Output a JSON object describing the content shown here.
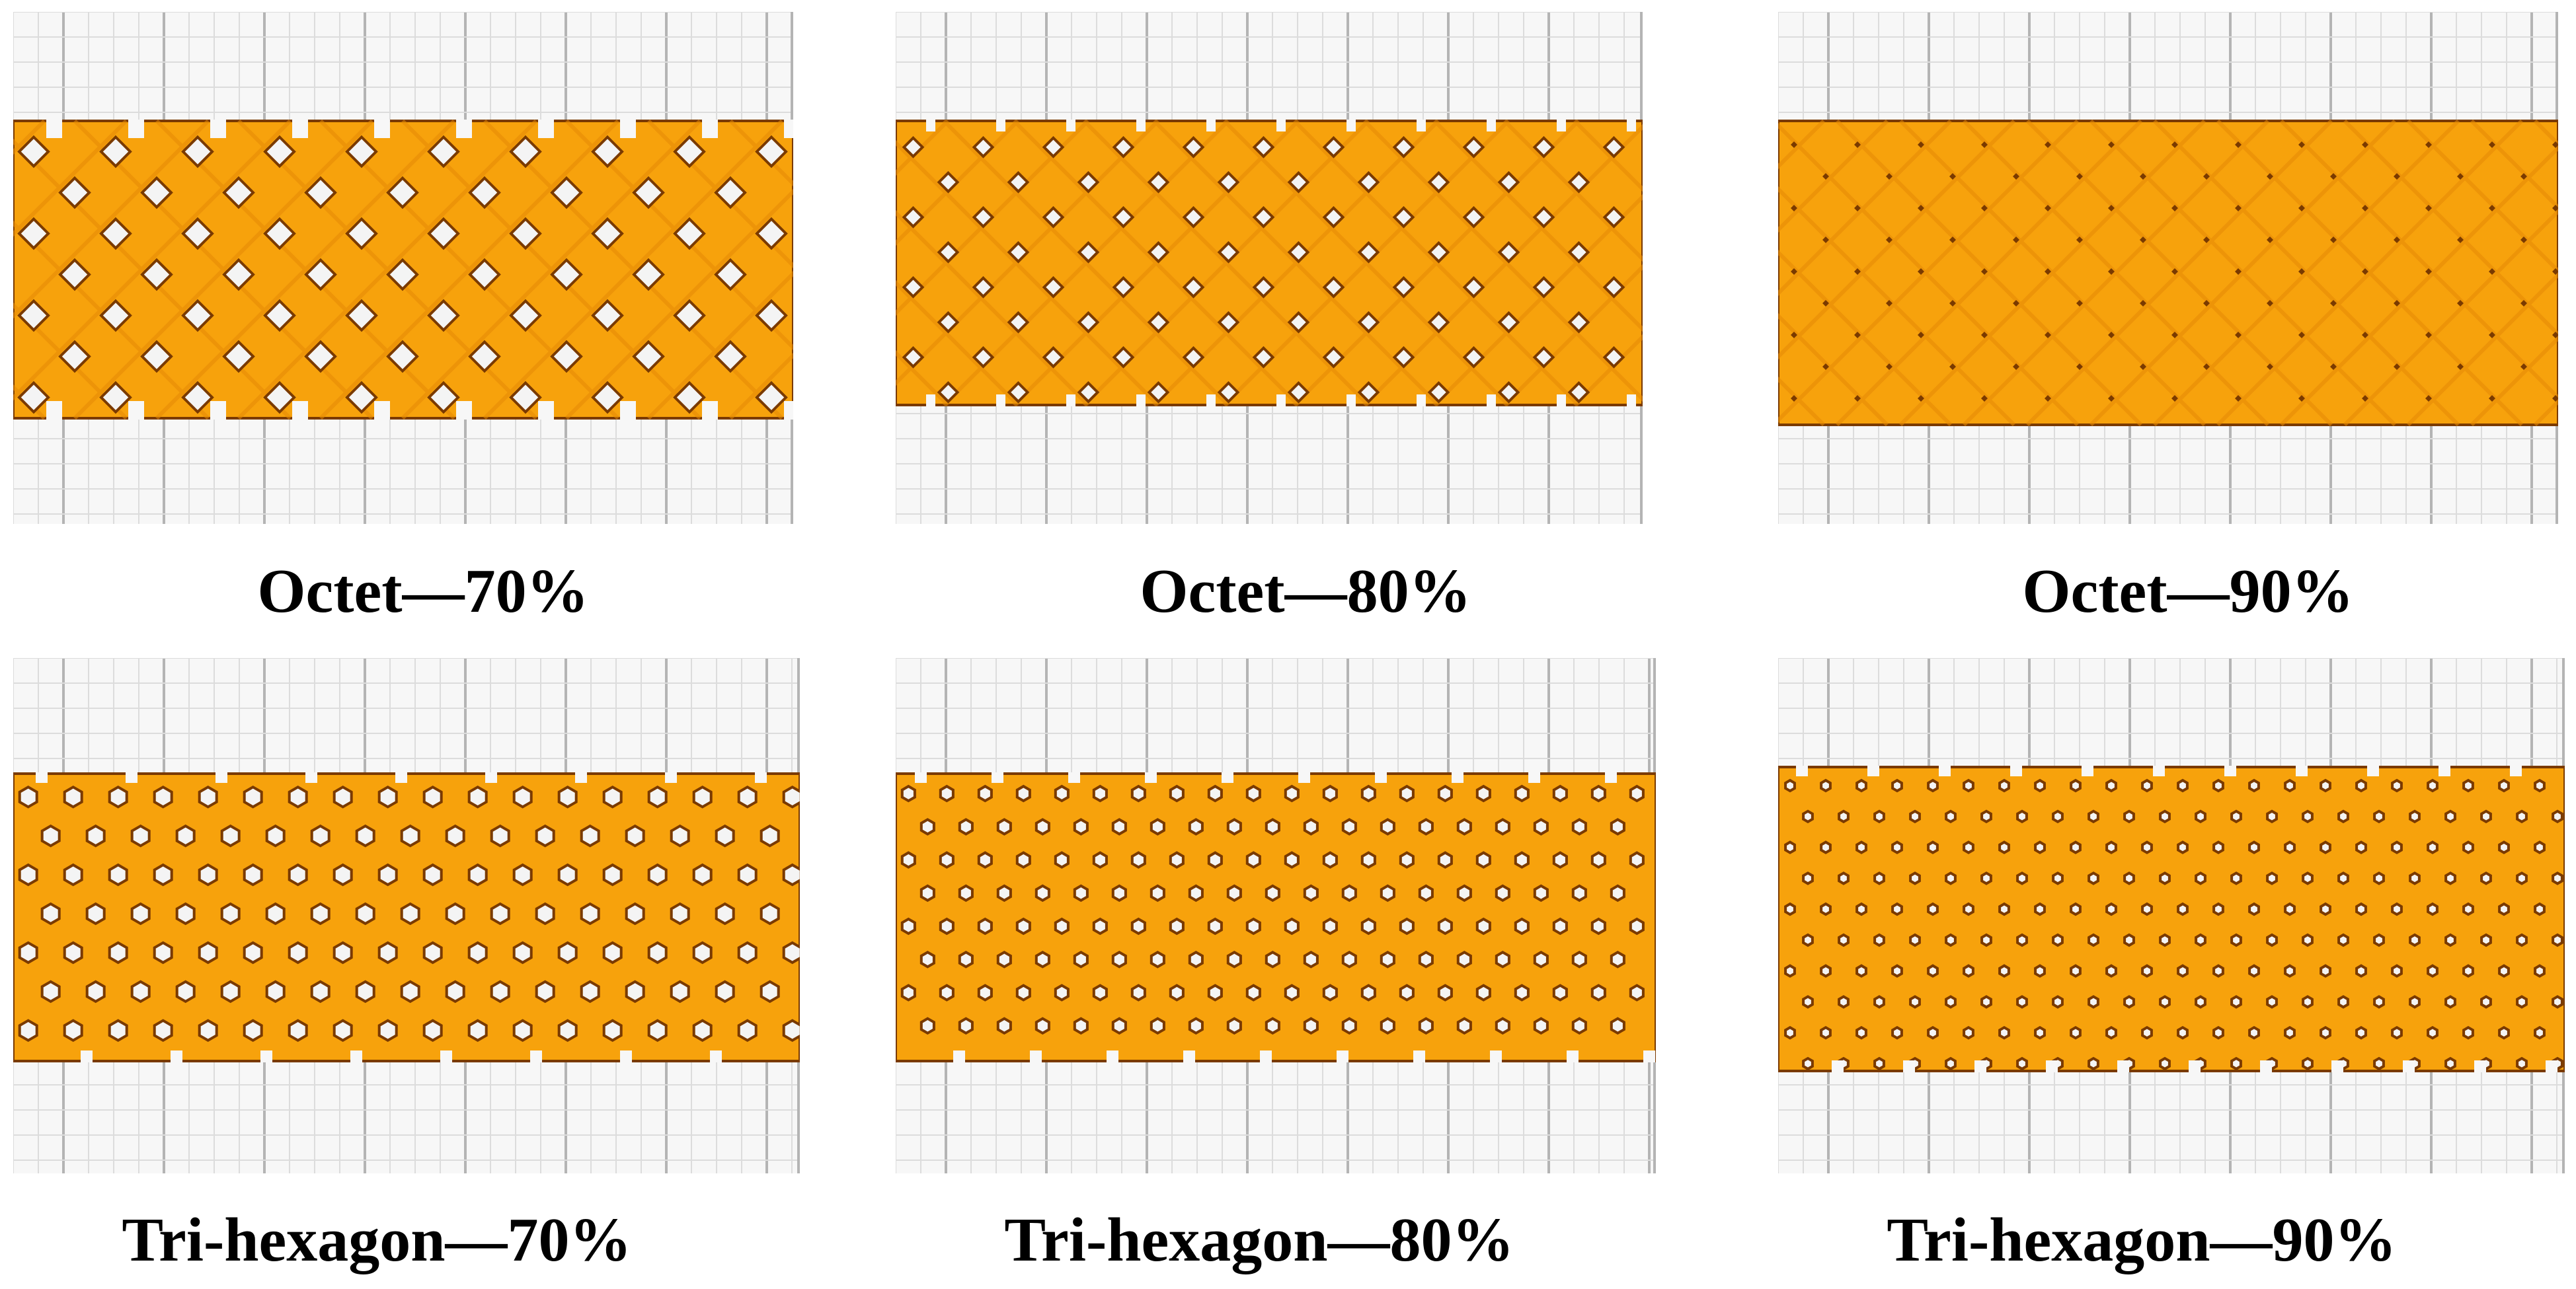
{
  "figure": {
    "colors": {
      "infill": "#f7a20c",
      "infill_dark": "#e58a06",
      "outline": "#7a3a00",
      "hole": "#f4f4f4",
      "grid_minor": "#dcdcdc",
      "grid_major": "#b4b4b4",
      "plate_background": "#f7f7f7"
    },
    "panels": [
      {
        "pattern": "octet",
        "density": 70,
        "caption": "Octet—70%"
      },
      {
        "pattern": "octet",
        "density": 80,
        "caption": "Octet—80%"
      },
      {
        "pattern": "octet",
        "density": 90,
        "caption": "Octet—90%"
      },
      {
        "pattern": "tri-hexagon",
        "density": 70,
        "caption": "Tri-hexagon—70%"
      },
      {
        "pattern": "tri-hexagon",
        "density": 80,
        "caption": "Tri-hexagon—80%"
      },
      {
        "pattern": "tri-hexagon",
        "density": 90,
        "caption": "Tri-hexagon—90%"
      }
    ]
  }
}
